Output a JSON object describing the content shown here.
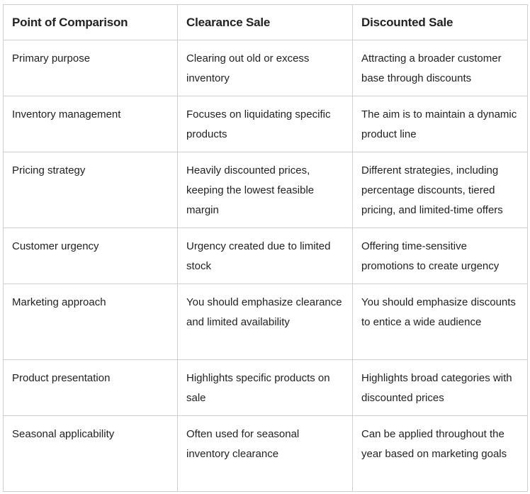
{
  "table": {
    "headers": [
      "Point of Comparison",
      "Clearance Sale",
      "Discounted Sale"
    ],
    "rows": [
      [
        "Primary purpose",
        "Clearing out old or excess inventory",
        "Attracting a broader customer base through discounts"
      ],
      [
        "Inventory management",
        "Focuses on liquidating specific products",
        "The aim is to maintain a dynamic product line"
      ],
      [
        "Pricing strategy",
        "Heavily discounted prices, keeping the lowest feasible margin",
        "Different strategies, including percentage discounts, tiered pricing, and limited-time offers"
      ],
      [
        "Customer urgency",
        "Urgency created due to limited stock",
        "Offering time-sensitive promotions to create urgency"
      ],
      [
        "Marketing approach",
        "You should emphasize clearance and limited availability",
        "You should emphasize discounts to entice a wide audience"
      ],
      [
        "Product presentation",
        "Highlights specific products on sale",
        "Highlights broad categories with discounted prices"
      ],
      [
        "Seasonal applicability",
        "Often used for seasonal inventory clearance",
        "Can be applied throughout the year based on marketing goals"
      ]
    ]
  }
}
